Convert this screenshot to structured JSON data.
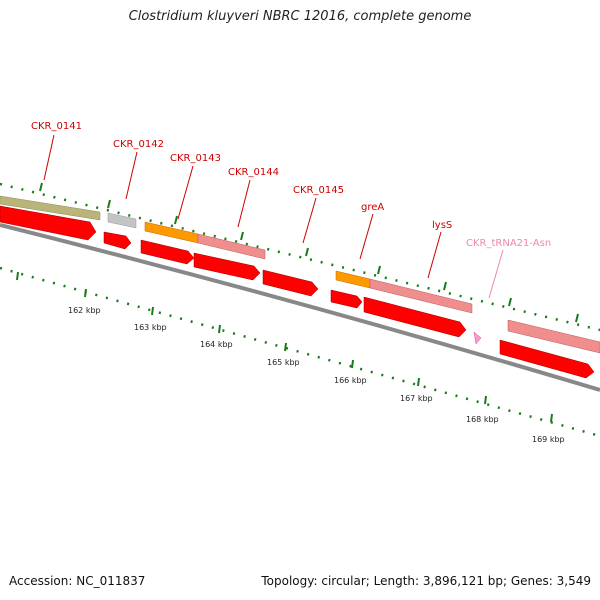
{
  "title": "Clostridium kluyveri NBRC 12016, complete genome",
  "footer": {
    "accession": "Accession: NC_011837",
    "stats": "Topology: circular; Length: 3,896,121 bp; Genes: 3,549"
  },
  "colors": {
    "gene_label": "#cc0000",
    "trna_label": "#ee88aa",
    "olive": "#b8b47a",
    "gray": "#c4c4c4",
    "orange": "#ff9900",
    "salmon": "#f08d8d",
    "red": "#ff0000",
    "pink": "#ff99cc",
    "backbone": "#888888",
    "tick": "#1a7a1a"
  },
  "ruler_labels": [
    "162 kbp",
    "163 kbp",
    "164 kbp",
    "165 kbp",
    "166 kbp",
    "167 kbp",
    "168 kbp",
    "169 kbp"
  ],
  "genes": [
    {
      "name": "CKR_0141",
      "color": "olive"
    },
    {
      "name": "CKR_0142",
      "color": "gray"
    },
    {
      "name": "CKR_0143",
      "color": "orange"
    },
    {
      "name": "CKR_0144",
      "color": "salmon"
    },
    {
      "name": "CKR_0145",
      "color": "salmon"
    },
    {
      "name": "greA",
      "color": "orange"
    },
    {
      "name": "lysS",
      "color": "salmon"
    },
    {
      "name": "CKR_tRNA21-Asn",
      "color": "pink"
    }
  ]
}
